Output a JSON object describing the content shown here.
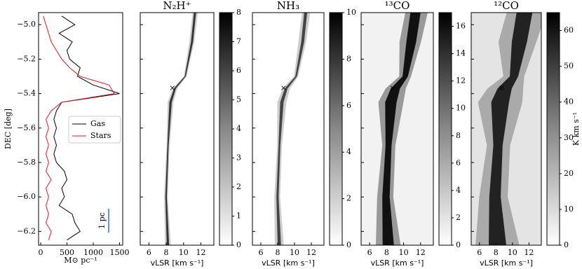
{
  "chart_data": [
    {
      "type": "line",
      "ylabel": "DEC [deg]",
      "xlabel": "M⊙ pc⁻¹",
      "y": [
        -4.95,
        -5.0,
        -5.05,
        -5.1,
        -5.15,
        -5.2,
        -5.25,
        -5.3,
        -5.35,
        -5.4,
        -5.45,
        -5.5,
        -5.55,
        -5.6,
        -5.65,
        -5.7,
        -5.75,
        -5.8,
        -5.85,
        -5.9,
        -5.95,
        -6.0,
        -6.05,
        -6.1,
        -6.15,
        -6.2,
        -6.25
      ],
      "series": [
        {
          "name": "Gas",
          "color": "#000000",
          "values": [
            400,
            650,
            350,
            600,
            500,
            550,
            750,
            700,
            1000,
            1500,
            400,
            300,
            250,
            300,
            250,
            300,
            250,
            300,
            450,
            500,
            400,
            450,
            350,
            600,
            650,
            750,
            500
          ]
        },
        {
          "name": "Stars",
          "color": "#e41a1c",
          "values": [
            50,
            100,
            150,
            200,
            300,
            400,
            550,
            750,
            1300,
            1400,
            400,
            200,
            100,
            150,
            100,
            150,
            100,
            150,
            100,
            200,
            100,
            150,
            100,
            150,
            100,
            200,
            150
          ]
        }
      ],
      "xlim": [
        -40,
        1560
      ],
      "xticks": [
        0,
        500,
        1000,
        1500
      ],
      "ylim": [
        -6.28,
        -4.93
      ],
      "yticks": [
        {
          "value": -5.0,
          "label": "−5.0"
        },
        {
          "value": -5.2,
          "label": "−5.2"
        },
        {
          "value": -5.4,
          "label": "−5.4"
        },
        {
          "value": -5.6,
          "label": "−5.6"
        },
        {
          "value": -5.8,
          "label": "−5.8"
        },
        {
          "value": -6.0,
          "label": "−6.0"
        },
        {
          "value": -6.2,
          "label": "−6.2"
        }
      ],
      "legend": "right",
      "annotation": "1 pc"
    },
    {
      "type": "image",
      "title": "N₂H⁺",
      "xlabel": "vLSR [km s⁻¹]",
      "xlim": [
        5,
        13.5
      ],
      "xticks": [
        6,
        8,
        10,
        12
      ],
      "colorbar": {
        "lim": [
          0,
          8
        ],
        "ticks": [
          0,
          1,
          2,
          3,
          4,
          5,
          6,
          7,
          8
        ]
      },
      "marker": {
        "x": 8.7,
        "y": -5.37,
        "color": "#ff0000"
      }
    },
    {
      "type": "image",
      "title": "NH₃",
      "xlabel": "vLSR [km s⁻¹]",
      "xlim": [
        5,
        13.5
      ],
      "xticks": [
        6,
        8,
        10,
        12
      ],
      "colorbar": {
        "lim": [
          0,
          10
        ],
        "ticks": [
          0,
          2,
          4,
          6,
          8,
          10
        ]
      },
      "marker": {
        "x": 8.7,
        "y": -5.37,
        "color": "#ff0000"
      }
    },
    {
      "type": "image",
      "title": "¹³CO",
      "xlabel": "vLSR [km s⁻¹]",
      "xlim": [
        5,
        13.5
      ],
      "xticks": [
        6,
        8,
        10,
        12
      ],
      "colorbar": {
        "lim": [
          0,
          17
        ],
        "ticks": [
          0,
          2,
          4,
          6,
          8,
          10,
          12,
          14,
          16
        ]
      },
      "marker": {
        "x": 8.7,
        "y": -5.37,
        "color": "#ff0000"
      }
    },
    {
      "type": "image",
      "title": "¹²CO",
      "xlabel": "vLSR [km s⁻¹]",
      "xlim": [
        5,
        13.5
      ],
      "xticks": [
        6,
        8,
        10,
        12
      ],
      "colorbar": {
        "lim": [
          0,
          65
        ],
        "ticks": [
          0,
          10,
          20,
          30,
          40,
          50,
          60
        ],
        "label": "K km s⁻¹"
      },
      "marker": {
        "x": 8.7,
        "y": -5.37,
        "color": "#ff0000"
      }
    }
  ]
}
